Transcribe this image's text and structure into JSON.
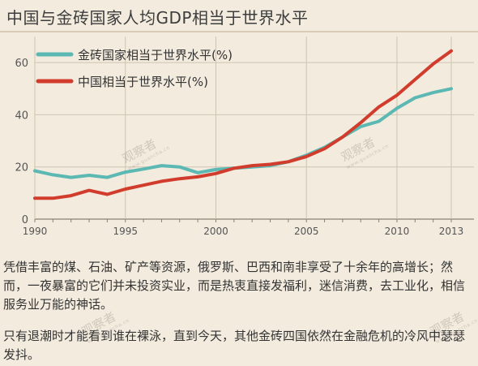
{
  "title": "中国与金砖国家人均GDP相当于世界水平",
  "watermark": "观察者",
  "watermark_url": "www.guancha.cn",
  "paragraphs": [
    "凭借丰富的煤、石油、矿产等资源，俄罗斯、巴西和南非享受了十余年的高增长；然而，一夜暴富的它们并未投资实业，而是热衷直接发福利，迷信消费，去工业化，相信服务业万能的神话。",
    "只有退潮时才能看到谁在裸泳，直到今天，其他金砖四国依然在金融危机的冷风中瑟瑟发抖。"
  ],
  "chart_data": {
    "type": "line",
    "title": "中国与金砖国家人均GDP相当于世界水平",
    "xlim": [
      1990,
      2013
    ],
    "ylim": [
      0,
      70
    ],
    "x_ticks": [
      1990,
      1995,
      2000,
      2005,
      2010,
      2013
    ],
    "y_ticks": [
      0,
      20,
      40,
      60
    ],
    "grid": true,
    "legend_position": "top-left",
    "x": [
      1990,
      1991,
      1992,
      1993,
      1994,
      1995,
      1996,
      1997,
      1998,
      1999,
      2000,
      2001,
      2002,
      2003,
      2004,
      2005,
      2006,
      2007,
      2008,
      2009,
      2010,
      2011,
      2012,
      2013
    ],
    "series": [
      {
        "name": "金砖国家相当于世界水平(%)",
        "color": "#5bb8b3",
        "values": [
          18.5,
          17.0,
          16.0,
          16.8,
          16.0,
          18.0,
          19.2,
          20.5,
          20.0,
          17.8,
          19.0,
          19.5,
          20.0,
          20.5,
          22.0,
          24.5,
          27.5,
          31.5,
          35.5,
          37.5,
          42.5,
          46.5,
          48.5,
          50.0
        ]
      },
      {
        "name": "中国相当于世界水平(%)",
        "color": "#d13c2d",
        "values": [
          8.0,
          8.0,
          9.0,
          11.0,
          9.5,
          11.5,
          13.0,
          14.5,
          15.5,
          16.2,
          17.5,
          19.5,
          20.5,
          21.0,
          22.0,
          24.0,
          27.0,
          31.5,
          37.0,
          43.0,
          47.5,
          53.5,
          59.5,
          64.5
        ]
      }
    ]
  }
}
